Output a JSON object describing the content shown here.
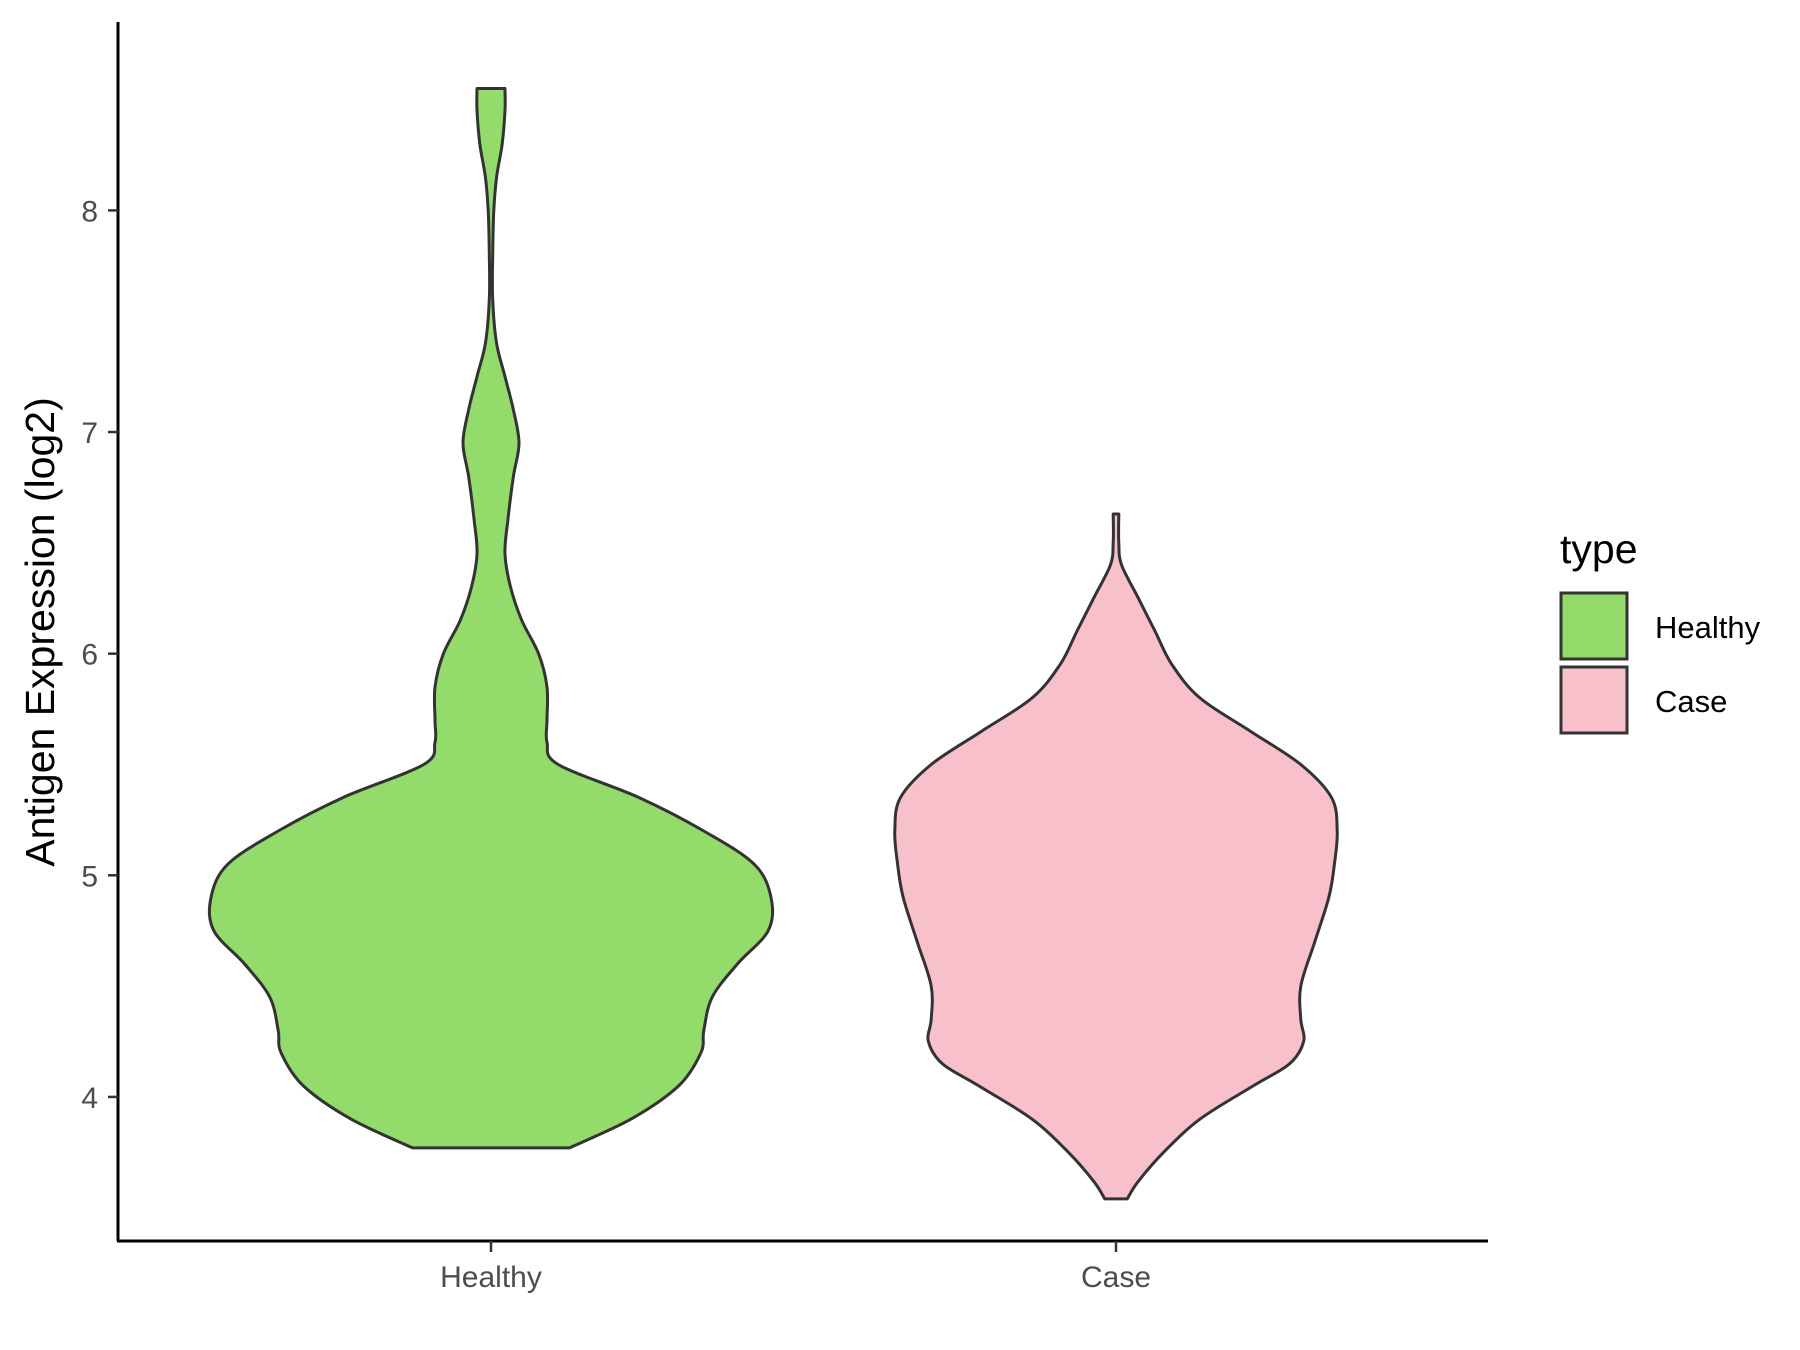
{
  "chart_data": {
    "type": "violin",
    "xlabel": "",
    "ylabel": "Antigen Expression (log2)",
    "ylim": [
      3.35,
      8.85
    ],
    "yticks": [
      4,
      5,
      6,
      7,
      8
    ],
    "categories": [
      "Healthy",
      "Case"
    ],
    "grid": false,
    "legend": {
      "title": "type",
      "position": "right",
      "entries": [
        "Healthy",
        "Case"
      ]
    },
    "colors": {
      "Healthy": "#93DB6A",
      "Case": "#F7C0CB",
      "outline": "#333333"
    },
    "series": [
      {
        "name": "Healthy",
        "range": [
          3.77,
          8.55
        ],
        "density": [
          [
            3.77,
            0.28
          ],
          [
            3.9,
            0.5
          ],
          [
            4.05,
            0.67
          ],
          [
            4.2,
            0.75
          ],
          [
            4.3,
            0.76
          ],
          [
            4.45,
            0.79
          ],
          [
            4.6,
            0.88
          ],
          [
            4.75,
            0.99
          ],
          [
            4.9,
            1.0
          ],
          [
            5.05,
            0.94
          ],
          [
            5.2,
            0.76
          ],
          [
            5.35,
            0.53
          ],
          [
            5.5,
            0.24
          ],
          [
            5.6,
            0.2
          ],
          [
            5.7,
            0.2
          ],
          [
            5.85,
            0.2
          ],
          [
            6.0,
            0.17
          ],
          [
            6.15,
            0.11
          ],
          [
            6.3,
            0.07
          ],
          [
            6.45,
            0.05
          ],
          [
            6.6,
            0.06
          ],
          [
            6.8,
            0.08
          ],
          [
            6.95,
            0.1
          ],
          [
            7.1,
            0.08
          ],
          [
            7.25,
            0.05
          ],
          [
            7.4,
            0.02
          ],
          [
            7.6,
            0.006
          ],
          [
            7.8,
            0.006
          ],
          [
            8.0,
            0.01
          ],
          [
            8.15,
            0.02
          ],
          [
            8.3,
            0.04
          ],
          [
            8.45,
            0.05
          ],
          [
            8.55,
            0.05
          ]
        ]
      },
      {
        "name": "Case",
        "range": [
          3.54,
          6.63
        ],
        "density": [
          [
            3.54,
            0.04
          ],
          [
            3.62,
            0.08
          ],
          [
            3.75,
            0.17
          ],
          [
            3.9,
            0.3
          ],
          [
            4.05,
            0.49
          ],
          [
            4.15,
            0.62
          ],
          [
            4.25,
            0.67
          ],
          [
            4.35,
            0.66
          ],
          [
            4.5,
            0.66
          ],
          [
            4.7,
            0.71
          ],
          [
            4.9,
            0.76
          ],
          [
            5.05,
            0.78
          ],
          [
            5.2,
            0.79
          ],
          [
            5.35,
            0.77
          ],
          [
            5.5,
            0.66
          ],
          [
            5.65,
            0.48
          ],
          [
            5.8,
            0.3
          ],
          [
            5.95,
            0.2
          ],
          [
            6.1,
            0.14
          ],
          [
            6.25,
            0.08
          ],
          [
            6.4,
            0.02
          ],
          [
            6.5,
            0.01
          ],
          [
            6.63,
            0.01
          ]
        ]
      }
    ]
  }
}
